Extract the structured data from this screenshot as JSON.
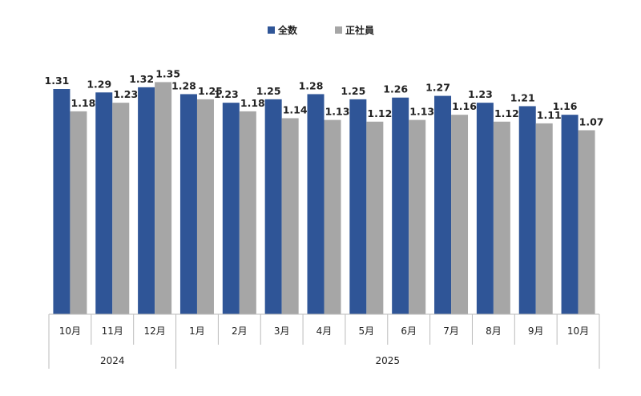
{
  "chart_data": {
    "type": "bar",
    "title": "",
    "xlabel": "",
    "ylabel": "",
    "ylim": [
      0,
      1.35
    ],
    "grid": false,
    "legend_position": "top-center",
    "categories": [
      "10月",
      "11月",
      "12月",
      "1月",
      "2月",
      "3月",
      "4月",
      "5月",
      "6月",
      "7月",
      "8月",
      "9月",
      "10月"
    ],
    "year_groups": [
      {
        "label": "2024",
        "count": 3
      },
      {
        "label": "2025",
        "count": 10
      }
    ],
    "series": [
      {
        "name": "全数",
        "color": "#2F5597",
        "values": [
          1.31,
          1.29,
          1.32,
          1.28,
          1.23,
          1.25,
          1.28,
          1.25,
          1.26,
          1.27,
          1.23,
          1.21,
          1.16
        ]
      },
      {
        "name": "正社員",
        "color": "#A6A6A6",
        "values": [
          1.18,
          1.23,
          1.35,
          1.25,
          1.18,
          1.14,
          1.13,
          1.12,
          1.13,
          1.16,
          1.12,
          1.11,
          1.07
        ]
      }
    ]
  }
}
